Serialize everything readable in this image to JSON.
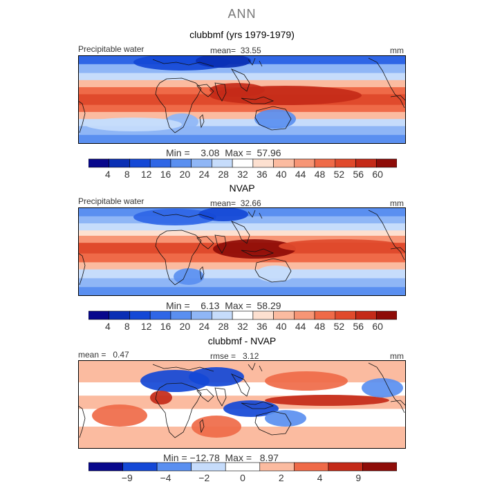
{
  "figure": {
    "title": "ANN"
  },
  "panels": [
    {
      "title": "clubbmf (yrs 1979-1979)",
      "left_label": "Precipitable water",
      "mean_label": "mean=",
      "mean_value": "33.55",
      "right_label": "mm",
      "min_label": "Min =",
      "min_value": "3.08",
      "max_label": "Max =",
      "max_value": "57.96",
      "colorbar_ticks": [
        "4",
        "8",
        "12",
        "16",
        "20",
        "24",
        "28",
        "32",
        "36",
        "40",
        "44",
        "48",
        "52",
        "56",
        "60"
      ]
    },
    {
      "title": "NVAP",
      "left_label": "Precipitable water",
      "mean_label": "mean=",
      "mean_value": "32.66",
      "right_label": "mm",
      "min_label": "Min =",
      "min_value": "6.13",
      "max_label": "Max =",
      "max_value": "58.29",
      "colorbar_ticks": [
        "4",
        "8",
        "12",
        "16",
        "20",
        "24",
        "28",
        "32",
        "36",
        "40",
        "44",
        "48",
        "52",
        "56",
        "60"
      ]
    },
    {
      "title": "clubbmf - NVAP",
      "left_label": "mean =",
      "left_value": "0.47",
      "rmse_label": "rmse =",
      "rmse_value": "3.12",
      "right_label": "mm",
      "min_label": "Min =",
      "min_value": "−12.78",
      "max_label": "Max =",
      "max_value": "8.97",
      "colorbar_ticks": [
        "−9",
        "−4",
        "−2",
        "0",
        "2",
        "4",
        "9"
      ]
    }
  ],
  "chart_data": [
    {
      "type": "heatmap",
      "title": "clubbmf (yrs 1979-1979)",
      "variable": "Precipitable water",
      "units": "mm",
      "mean": 33.55,
      "min": 3.08,
      "max": 57.96,
      "levels": [
        4,
        8,
        12,
        16,
        20,
        24,
        28,
        32,
        36,
        40,
        44,
        48,
        52,
        56,
        60
      ]
    },
    {
      "type": "heatmap",
      "title": "NVAP",
      "variable": "Precipitable water",
      "units": "mm",
      "mean": 32.66,
      "min": 6.13,
      "max": 58.29,
      "levels": [
        4,
        8,
        12,
        16,
        20,
        24,
        28,
        32,
        36,
        40,
        44,
        48,
        52,
        56,
        60
      ]
    },
    {
      "type": "heatmap",
      "title": "clubbmf - NVAP",
      "units": "mm",
      "mean": 0.47,
      "rmse": 3.12,
      "min": -12.78,
      "max": 8.97,
      "levels": [
        -9,
        -4,
        -2,
        0,
        2,
        4,
        9
      ]
    }
  ],
  "colors": {
    "sequential": [
      "#08088c",
      "#0a2fb4",
      "#1448d6",
      "#2f66e6",
      "#5a8ff0",
      "#8fb6f6",
      "#c6dcfb",
      "#ffffff",
      "#fde0d0",
      "#fbbba0",
      "#f79575",
      "#ef6a48",
      "#e04a2c",
      "#c42a18",
      "#8e0c08"
    ],
    "diverging": [
      "#08088c",
      "#1448d6",
      "#5a8ff0",
      "#c6dcfb",
      "#ffffff",
      "#fbbba0",
      "#ef6a48",
      "#c42a18",
      "#8e0c08"
    ]
  }
}
